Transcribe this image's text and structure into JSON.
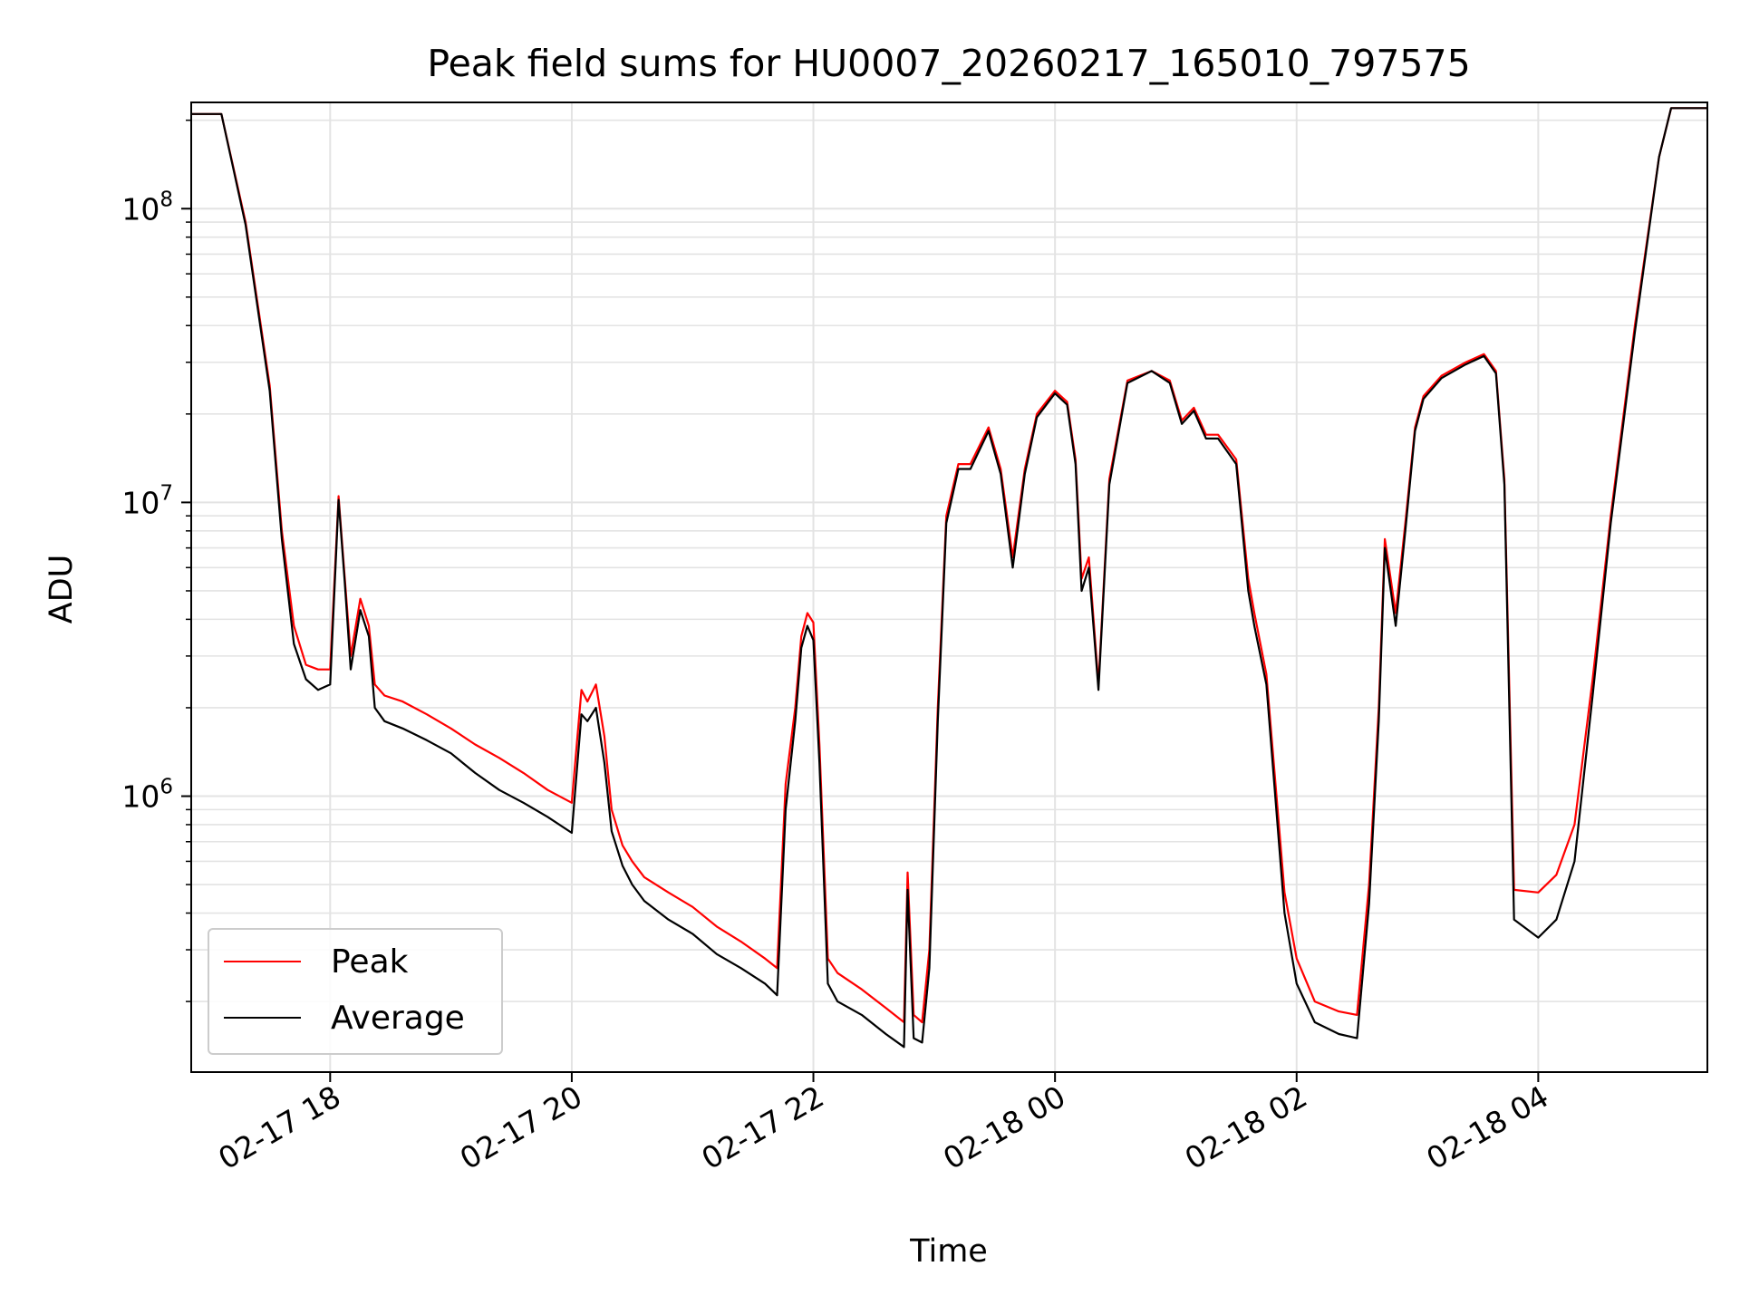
{
  "chart_data": {
    "type": "line",
    "title": "Peak field sums for HU0007_20260217_165010_797575",
    "xlabel": "Time",
    "ylabel": "ADU",
    "yscale": "log",
    "xlim_hours": [
      16.85,
      29.4
    ],
    "ylim": [
      115000,
      230000000
    ],
    "x_ticks": [
      {
        "label": "02-17 18",
        "hour": 18
      },
      {
        "label": "02-17 20",
        "hour": 20
      },
      {
        "label": "02-17 22",
        "hour": 22
      },
      {
        "label": "02-18 00",
        "hour": 24
      },
      {
        "label": "02-18 02",
        "hour": 26
      },
      {
        "label": "02-18 04",
        "hour": 28
      }
    ],
    "y_ticks": [
      {
        "base": "10",
        "exp": "6",
        "value": 1000000
      },
      {
        "base": "10",
        "exp": "7",
        "value": 10000000
      },
      {
        "base": "10",
        "exp": "8",
        "value": 100000000
      }
    ],
    "grid": true,
    "legend_position": "lower-left",
    "series": [
      {
        "name": "Peak",
        "color": "#ff0000",
        "x_hours": [
          16.85,
          17.1,
          17.3,
          17.5,
          17.6,
          17.7,
          17.8,
          17.9,
          18.0,
          18.07,
          18.12,
          18.17,
          18.25,
          18.32,
          18.37,
          18.45,
          18.6,
          18.8,
          19.0,
          19.2,
          19.4,
          19.6,
          19.8,
          20.0,
          20.08,
          20.13,
          20.2,
          20.27,
          20.33,
          20.42,
          20.5,
          20.6,
          20.8,
          21.0,
          21.2,
          21.4,
          21.6,
          21.7,
          21.77,
          21.85,
          21.9,
          21.95,
          22.0,
          22.05,
          22.12,
          22.2,
          22.4,
          22.6,
          22.75,
          22.78,
          22.83,
          22.9,
          22.96,
          23.03,
          23.1,
          23.2,
          23.3,
          23.45,
          23.55,
          23.65,
          23.75,
          23.85,
          24.0,
          24.1,
          24.17,
          24.22,
          24.28,
          24.36,
          24.45,
          24.6,
          24.8,
          24.95,
          25.05,
          25.15,
          25.25,
          25.35,
          25.5,
          25.6,
          25.65,
          25.75,
          25.9,
          26.0,
          26.15,
          26.35,
          26.5,
          26.6,
          26.68,
          26.73,
          26.82,
          26.9,
          26.98,
          27.05,
          27.2,
          27.4,
          27.55,
          27.65,
          27.72,
          27.8,
          28.0,
          28.15,
          28.3,
          28.45,
          28.6,
          28.8,
          29.0,
          29.1,
          29.4
        ],
        "y_values": [
          210000000,
          210000000,
          90000000,
          25000000,
          8000000,
          3800000,
          2800000,
          2700000,
          2700000,
          10500000,
          5600000,
          3000000,
          4700000,
          3800000,
          2400000,
          2200000,
          2100000,
          1900000,
          1700000,
          1500000,
          1350000,
          1200000,
          1050000,
          950000,
          2300000,
          2100000,
          2400000,
          1600000,
          900000,
          680000,
          600000,
          530000,
          470000,
          420000,
          360000,
          320000,
          280000,
          260000,
          1100000,
          2000000,
          3500000,
          4200000,
          3900000,
          1500000,
          280000,
          250000,
          220000,
          190000,
          170000,
          550000,
          180000,
          170000,
          300000,
          2000000,
          9000000,
          13500000,
          13500000,
          18000000,
          13000000,
          6500000,
          13000000,
          20000000,
          24000000,
          22000000,
          14000000,
          5500000,
          6500000,
          2400000,
          12000000,
          26000000,
          28000000,
          26000000,
          19000000,
          21000000,
          17000000,
          17000000,
          14000000,
          5500000,
          4200000,
          2600000,
          470000,
          280000,
          200000,
          185000,
          180000,
          500000,
          2000000,
          7500000,
          4200000,
          8500000,
          18000000,
          23000000,
          27000000,
          30000000,
          32000000,
          28000000,
          12000000,
          480000,
          470000,
          540000,
          800000,
          2500000,
          9000000,
          40000000,
          150000000,
          220000000,
          220000000
        ]
      },
      {
        "name": "Average",
        "color": "#000000",
        "x_hours": [
          16.85,
          17.1,
          17.3,
          17.5,
          17.6,
          17.7,
          17.8,
          17.9,
          18.0,
          18.07,
          18.12,
          18.17,
          18.25,
          18.32,
          18.37,
          18.45,
          18.6,
          18.8,
          19.0,
          19.2,
          19.4,
          19.6,
          19.8,
          20.0,
          20.08,
          20.13,
          20.2,
          20.27,
          20.33,
          20.42,
          20.5,
          20.6,
          20.8,
          21.0,
          21.2,
          21.4,
          21.6,
          21.7,
          21.77,
          21.85,
          21.9,
          21.95,
          22.0,
          22.05,
          22.12,
          22.2,
          22.4,
          22.6,
          22.75,
          22.78,
          22.83,
          22.9,
          22.96,
          23.03,
          23.1,
          23.2,
          23.3,
          23.45,
          23.55,
          23.65,
          23.75,
          23.85,
          24.0,
          24.1,
          24.17,
          24.22,
          24.28,
          24.36,
          24.45,
          24.6,
          24.8,
          24.95,
          25.05,
          25.15,
          25.25,
          25.35,
          25.5,
          25.6,
          25.65,
          25.75,
          25.9,
          26.0,
          26.15,
          26.35,
          26.5,
          26.6,
          26.68,
          26.73,
          26.82,
          26.9,
          26.98,
          27.05,
          27.2,
          27.4,
          27.55,
          27.65,
          27.72,
          27.8,
          28.0,
          28.15,
          28.3,
          28.45,
          28.6,
          28.8,
          29.0,
          29.1,
          29.4
        ],
        "y_values": [
          210000000,
          210000000,
          88000000,
          24000000,
          7500000,
          3300000,
          2500000,
          2300000,
          2400000,
          10200000,
          5400000,
          2700000,
          4300000,
          3500000,
          2000000,
          1800000,
          1700000,
          1550000,
          1400000,
          1200000,
          1050000,
          950000,
          850000,
          750000,
          1900000,
          1800000,
          2000000,
          1300000,
          760000,
          580000,
          500000,
          440000,
          380000,
          340000,
          290000,
          260000,
          230000,
          210000,
          900000,
          1800000,
          3200000,
          3800000,
          3400000,
          1300000,
          230000,
          200000,
          180000,
          155000,
          140000,
          480000,
          150000,
          145000,
          260000,
          1800000,
          8500000,
          13000000,
          13000000,
          17500000,
          12500000,
          6000000,
          12500000,
          19500000,
          23500000,
          21500000,
          13500000,
          5000000,
          6000000,
          2300000,
          11500000,
          25500000,
          28000000,
          25500000,
          18500000,
          20500000,
          16500000,
          16500000,
          13500000,
          5000000,
          3800000,
          2400000,
          400000,
          230000,
          170000,
          155000,
          150000,
          430000,
          1800000,
          7000000,
          3800000,
          8000000,
          17500000,
          22500000,
          26500000,
          29500000,
          31500000,
          27500000,
          11500000,
          380000,
          330000,
          380000,
          600000,
          2200000,
          8500000,
          38000000,
          150000000,
          220000000,
          220000000
        ]
      }
    ]
  }
}
